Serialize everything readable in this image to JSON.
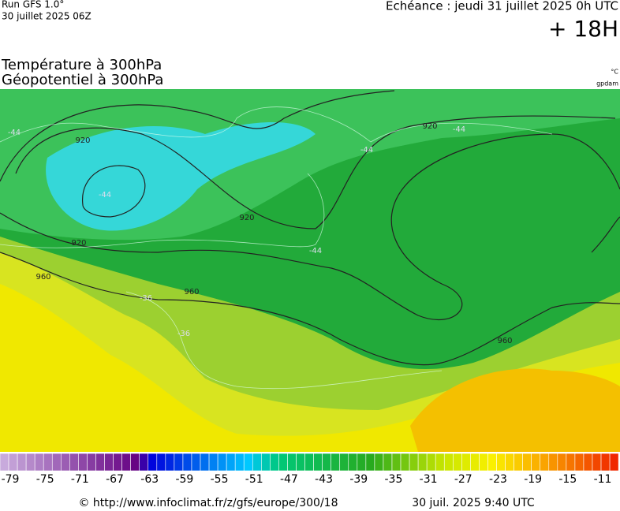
{
  "header": {
    "run": "Run GFS 1.0°",
    "run_date": "30 juillet 2025 06Z",
    "valid": "Echéance : jeudi 31 juillet 2025 0h UTC",
    "lead": "+ 18H"
  },
  "titles": {
    "temperature": "Température à 300hPa",
    "geopotential": "Géopotentiel à 300hPa",
    "temp_unit": "°C",
    "geo_unit": "gpdam"
  },
  "map_labels": {
    "geopotential": [
      "920",
      "920",
      "920",
      "920",
      "960",
      "960",
      "960"
    ],
    "temperature": [
      "-44",
      "-44",
      "-44",
      "-44",
      "-44",
      "-36",
      "-36"
    ]
  },
  "colorbar": {
    "ticks": [
      -79,
      -75,
      -71,
      -67,
      -63,
      -59,
      -55,
      -51,
      -47,
      -43,
      -39,
      -35,
      -31,
      -27,
      -23,
      -19,
      -15,
      -11
    ]
  },
  "footer": {
    "url": "© http://www.infoclimat.fr/z/gfs/europe/300/18",
    "timestamp": "30 juil. 2025  9:40 UTC"
  }
}
